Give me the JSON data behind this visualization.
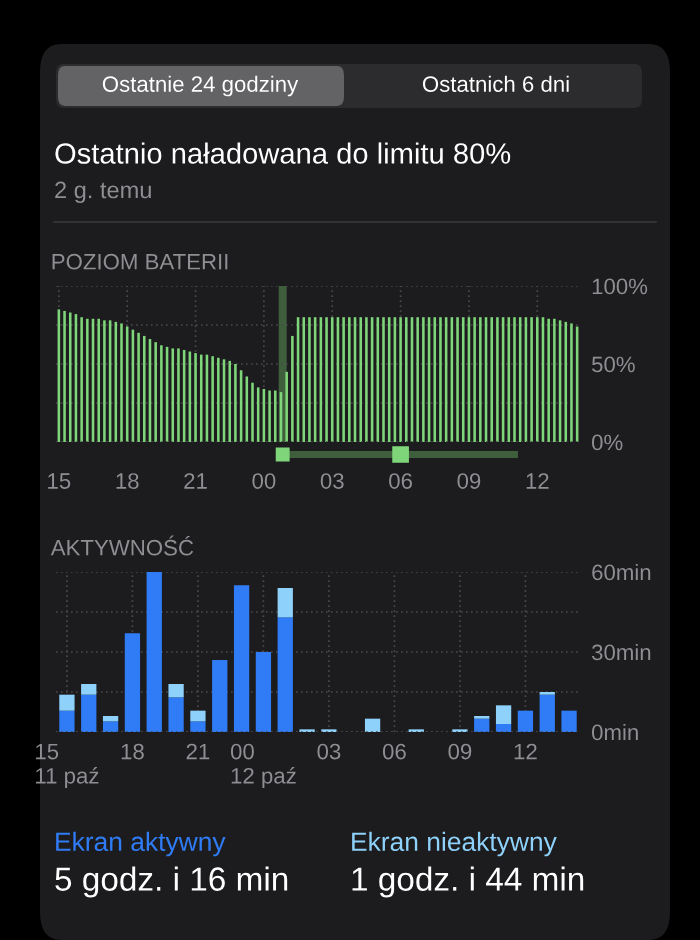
{
  "chart_data": [
    {
      "type": "bar",
      "title": "POZIOM BATERII",
      "annotations": [
        "Ostatnie 24 godziny",
        "Ostatnich 6 dni",
        "Ostatnio naładowana do limitu 80%",
        "2 g. temu"
      ],
      "categories": [
        "15",
        null,
        null,
        null,
        null,
        null,
        null,
        null,
        null,
        null,
        null,
        null,
        "18",
        null,
        null,
        null,
        null,
        null,
        null,
        null,
        null,
        null,
        null,
        null,
        "21",
        null,
        null,
        null,
        null,
        null,
        null,
        null,
        null,
        null,
        null,
        null,
        "00",
        null,
        null,
        null,
        null,
        null,
        null,
        null,
        null,
        null,
        null,
        null,
        "03",
        null,
        null,
        null,
        null,
        null,
        null,
        null,
        null,
        null,
        null,
        null,
        "06",
        null,
        null,
        null,
        null,
        null,
        null,
        null,
        null,
        null,
        null,
        null,
        "09",
        null,
        null,
        null,
        null,
        null,
        null,
        null,
        null,
        null,
        null,
        null,
        "12",
        null,
        null,
        null,
        null,
        null,
        null,
        null
      ],
      "values": [
        85,
        84,
        83,
        82,
        80,
        79,
        79,
        79,
        78,
        78,
        77,
        76,
        74,
        72,
        70,
        68,
        66,
        64,
        62,
        61,
        60,
        60,
        59,
        58,
        57,
        56,
        56,
        55,
        54,
        53,
        52,
        50,
        46,
        42,
        38,
        35,
        34,
        33,
        33,
        32,
        45,
        68,
        80,
        80,
        80,
        80,
        80,
        80,
        80,
        80,
        80,
        80,
        80,
        80,
        80,
        80,
        80,
        80,
        80,
        80,
        80,
        80,
        80,
        80,
        80,
        80,
        80,
        80,
        80,
        80,
        80,
        80,
        80,
        80,
        80,
        80,
        80,
        80,
        80,
        80,
        80,
        80,
        80,
        80,
        80,
        80,
        79,
        79,
        78,
        77,
        76,
        74
      ],
      "color": "#7fd67a",
      "ylim": [
        0,
        100
      ],
      "yticks": [
        {
          "value": 0,
          "label": "0%"
        },
        {
          "value": 25,
          "label": null
        },
        {
          "value": 50,
          "label": "50%"
        },
        {
          "value": 75,
          "label": null
        },
        {
          "value": 100,
          "label": "100%"
        }
      ],
      "grid": true
    },
    {
      "type": "bar",
      "title": "AKTYWNOŚĆ",
      "stacked": true,
      "categories": [
        "15\n11 paź",
        null,
        null,
        "18",
        null,
        null,
        "21",
        null,
        null,
        "00\n12 paź",
        null,
        null,
        "03",
        null,
        null,
        "06",
        null,
        null,
        "09",
        null,
        null,
        "12",
        null,
        null
      ],
      "series": [
        {
          "name": "Ekran aktywny",
          "color": "#2f7cf6",
          "values": [
            8,
            14,
            4,
            37,
            60,
            13,
            4,
            27,
            55,
            30,
            43,
            0,
            0,
            0,
            0,
            0,
            0,
            0,
            0,
            5,
            3,
            8,
            14,
            8
          ]
        },
        {
          "name": "Ekran nieaktywny",
          "color": "#8ed2fb",
          "values": [
            6,
            4,
            2,
            0,
            0,
            5,
            4,
            0,
            0,
            0,
            11,
            1,
            1,
            0,
            5,
            0,
            1,
            0,
            1,
            1,
            7,
            0,
            1,
            0
          ]
        }
      ],
      "ylim": [
        0,
        60
      ],
      "yticks": [
        {
          "value": 0,
          "label": "0min"
        },
        {
          "value": 15,
          "label": null
        },
        {
          "value": 30,
          "label": "30min"
        },
        {
          "value": 45,
          "label": null
        },
        {
          "value": 60,
          "label": "60min"
        }
      ],
      "grid": true,
      "legend": "bottom",
      "annotations": [
        "5 godz. i 16 min",
        "1 godz. i 44 min"
      ]
    }
  ]
}
